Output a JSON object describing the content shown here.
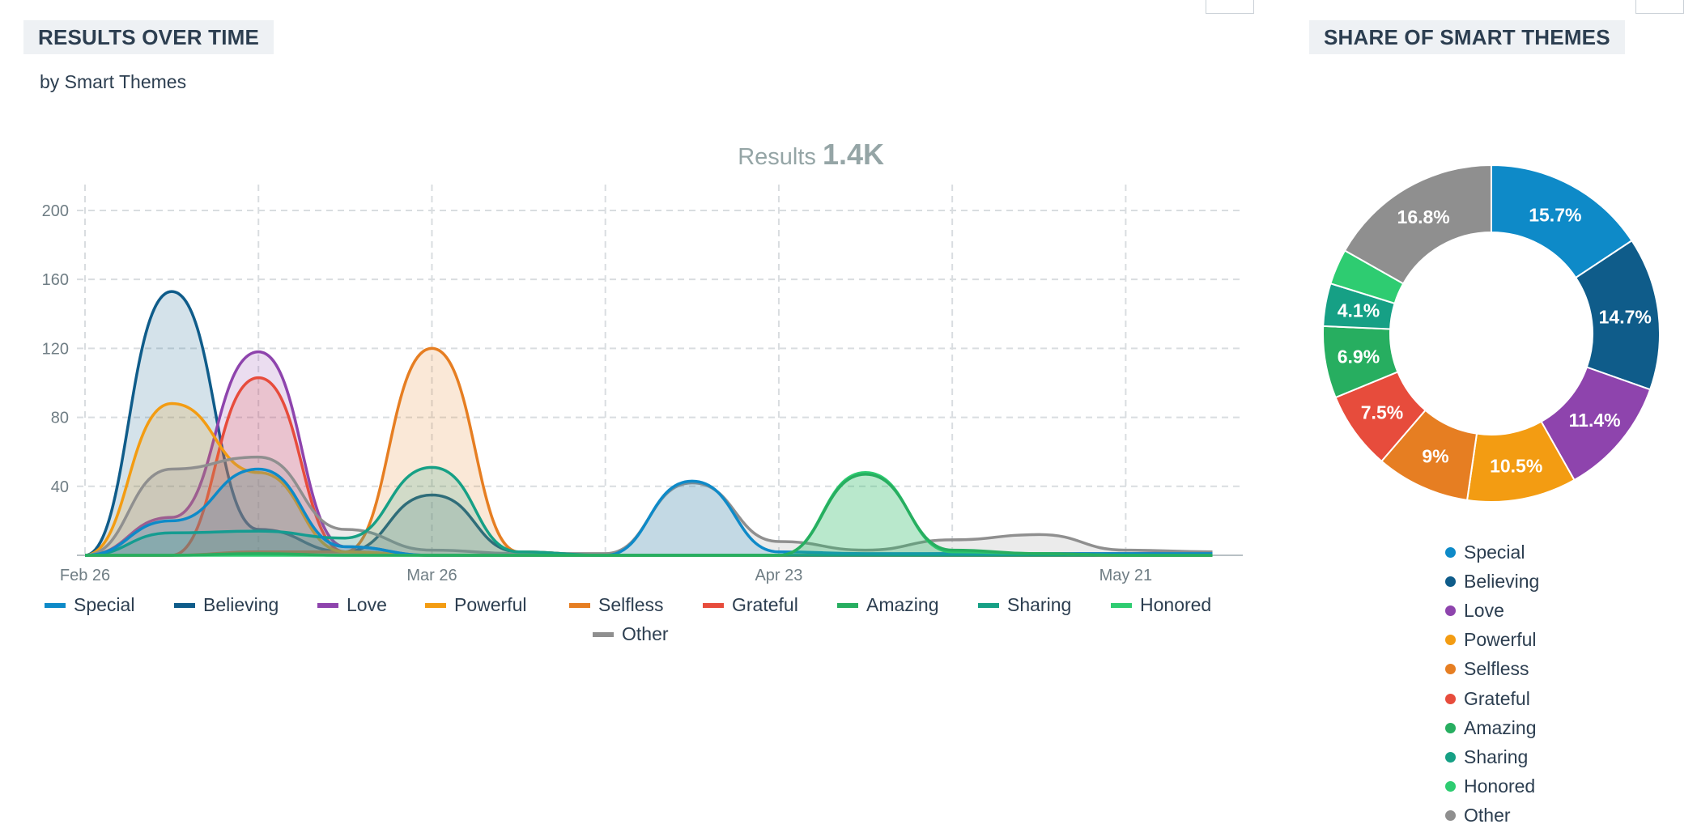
{
  "left_panel": {
    "title": "RESULTS OVER TIME",
    "subtitle": "by Smart Themes",
    "results_label": "Results",
    "results_value": "1.4K"
  },
  "right_panel": {
    "title": "SHARE OF SMART THEMES"
  },
  "chart_data": [
    {
      "type": "area",
      "title": "RESULTS OVER TIME",
      "subtitle": "by Smart Themes",
      "x_tick_labels": [
        "Feb 26",
        "Mar 26",
        "Apr 23",
        "May 21"
      ],
      "y_ticks": [
        40,
        80,
        120,
        160,
        200
      ],
      "ylim": [
        0,
        215
      ],
      "grid": true,
      "legend_position": "bottom",
      "x": [
        "Feb 26",
        "Mar 5",
        "Mar 12",
        "Mar 19",
        "Mar 26",
        "Apr 2",
        "Apr 9",
        "Apr 16",
        "Apr 23",
        "Apr 30",
        "May 7",
        "May 14",
        "May 21",
        "May 28"
      ],
      "series": [
        {
          "name": "Special",
          "color": "#0e8ac8",
          "values": [
            0,
            20,
            50,
            5,
            0,
            0,
            0,
            43,
            2,
            1,
            1,
            1,
            1,
            1
          ]
        },
        {
          "name": "Believing",
          "color": "#0f5c8a",
          "values": [
            0,
            153,
            15,
            2,
            35,
            2,
            0,
            0,
            0,
            0,
            0,
            0,
            0,
            0
          ]
        },
        {
          "name": "Love",
          "color": "#8e44ad",
          "values": [
            0,
            22,
            118,
            5,
            0,
            0,
            0,
            0,
            0,
            0,
            1,
            1,
            1,
            2
          ]
        },
        {
          "name": "Powerful",
          "color": "#f39c12",
          "values": [
            0,
            88,
            48,
            2,
            0,
            0,
            0,
            0,
            0,
            0,
            0,
            0,
            0,
            0
          ]
        },
        {
          "name": "Selfless",
          "color": "#e67e22",
          "values": [
            0,
            0,
            2,
            2,
            120,
            2,
            0,
            0,
            0,
            0,
            0,
            0,
            0,
            0
          ]
        },
        {
          "name": "Grateful",
          "color": "#e74c3c",
          "values": [
            0,
            0,
            103,
            2,
            0,
            0,
            0,
            0,
            0,
            0,
            0,
            0,
            0,
            0
          ]
        },
        {
          "name": "Amazing",
          "color": "#27ae60",
          "values": [
            0,
            0,
            1,
            0,
            0,
            0,
            0,
            0,
            0,
            47,
            3,
            1,
            0,
            0
          ]
        },
        {
          "name": "Sharing",
          "color": "#16a085",
          "values": [
            0,
            13,
            14,
            10,
            51,
            2,
            0,
            0,
            0,
            0,
            0,
            0,
            0,
            0
          ]
        },
        {
          "name": "Honored",
          "color": "#2ecc71",
          "values": [
            0,
            0,
            0,
            0,
            0,
            0,
            0,
            0,
            0,
            48,
            2,
            1,
            0,
            0
          ]
        },
        {
          "name": "Other",
          "color": "#8f8f8f",
          "values": [
            0,
            50,
            57,
            15,
            3,
            1,
            1,
            42,
            8,
            3,
            9,
            12,
            3,
            2
          ]
        }
      ]
    },
    {
      "type": "pie",
      "title": "SHARE OF SMART THEMES",
      "legend_position": "bottom",
      "categories": [
        "Special",
        "Believing",
        "Love",
        "Powerful",
        "Selfless",
        "Grateful",
        "Amazing",
        "Sharing",
        "Honored",
        "Other"
      ],
      "values": [
        15.7,
        14.7,
        11.4,
        10.5,
        9,
        7.5,
        6.9,
        4.1,
        3.4,
        16.8
      ],
      "labels": [
        "15.7%",
        "14.7%",
        "11.4%",
        "10.5%",
        "9%",
        "7.5%",
        "6.9%",
        "4.1%",
        "",
        "16.8%"
      ],
      "colors": [
        "#0e8ac8",
        "#0f5c8a",
        "#8e44ad",
        "#f39c12",
        "#e67e22",
        "#e74c3c",
        "#27ae60",
        "#16a085",
        "#2ecc71",
        "#8f8f8f"
      ]
    }
  ]
}
